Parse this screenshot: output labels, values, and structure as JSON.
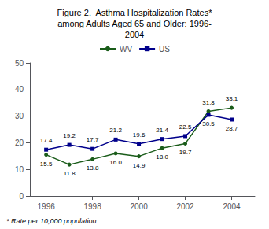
{
  "chart_data": {
    "type": "line",
    "title": "Figure 2.  Asthma Hospitalization Rates*\namong Adults Aged 65 and Older: 1996-\n2004",
    "footnote": "* Rate per 10,000 population.",
    "x": [
      1996,
      1997,
      1998,
      1999,
      2000,
      2001,
      2002,
      2003,
      2004
    ],
    "series": [
      {
        "name": "WV",
        "color": "#1a5c1a",
        "marker": "circle",
        "values": [
          15.5,
          11.8,
          13.8,
          16.0,
          14.9,
          18.0,
          19.7,
          31.8,
          33.1
        ],
        "value_labels": [
          "15.5",
          "11.8",
          "13.8",
          "16.0",
          "14.9",
          "18.0",
          "19.7",
          "31.8",
          "33.1"
        ]
      },
      {
        "name": "US",
        "color": "#00008b",
        "marker": "square",
        "values": [
          17.4,
          19.2,
          17.7,
          21.2,
          19.6,
          21.4,
          22.5,
          30.5,
          28.7
        ],
        "value_labels": [
          "17.4",
          "19.2",
          "17.7",
          "21.2",
          "19.6",
          "21.4",
          "22.5",
          "30.5",
          "28.7"
        ]
      }
    ],
    "xlim": [
      1995.3,
      2005.0
    ],
    "xticks": [
      1996,
      1998,
      2000,
      2002,
      2004
    ],
    "ylim": [
      0,
      50
    ],
    "yticks": [
      0,
      10,
      20,
      30,
      40,
      50
    ],
    "data_labels": true,
    "legend": "top",
    "grid": false
  }
}
